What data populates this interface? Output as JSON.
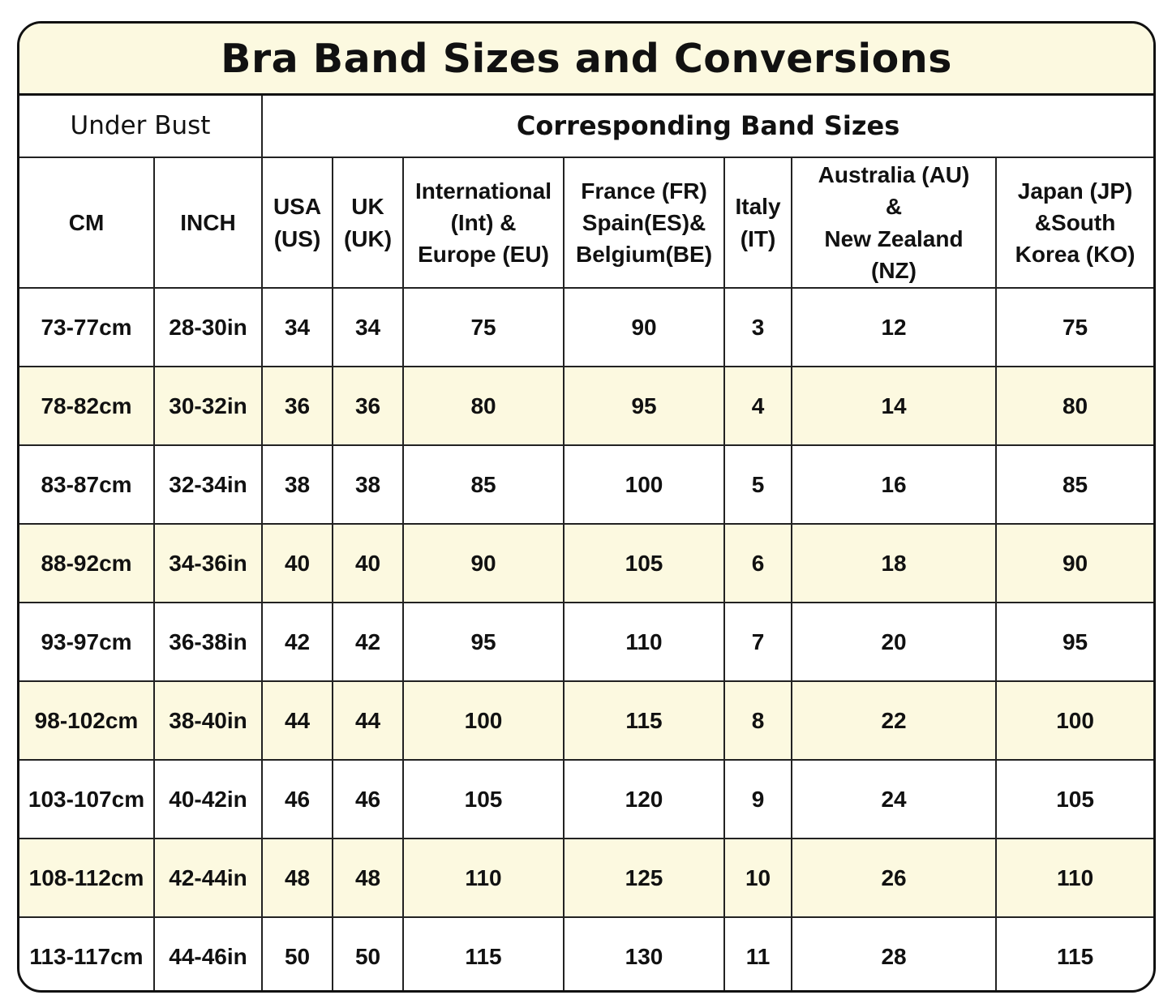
{
  "title": "Bra Band Sizes and Conversions",
  "group_headers": {
    "under_bust": "Under Bust",
    "corresponding": "Corresponding Band Sizes"
  },
  "columns": [
    [
      "CM"
    ],
    [
      "INCH"
    ],
    [
      "USA",
      "(US)"
    ],
    [
      "UK",
      "(UK)"
    ],
    [
      "International",
      "(Int) &",
      "Europe (EU)"
    ],
    [
      "France (FR)",
      "Spain(ES)&",
      "Belgium(BE)"
    ],
    [
      "Italy",
      "(IT)"
    ],
    [
      "Australia (AU)",
      "&",
      "New Zealand",
      "(NZ)"
    ],
    [
      "Japan (JP)",
      "&South",
      "Korea (KO)"
    ]
  ],
  "rows": [
    [
      "73-77cm",
      "28-30in",
      "34",
      "34",
      "75",
      "90",
      "3",
      "12",
      "75"
    ],
    [
      "78-82cm",
      "30-32in",
      "36",
      "36",
      "80",
      "95",
      "4",
      "14",
      "80"
    ],
    [
      "83-87cm",
      "32-34in",
      "38",
      "38",
      "85",
      "100",
      "5",
      "16",
      "85"
    ],
    [
      "88-92cm",
      "34-36in",
      "40",
      "40",
      "90",
      "105",
      "6",
      "18",
      "90"
    ],
    [
      "93-97cm",
      "36-38in",
      "42",
      "42",
      "95",
      "110",
      "7",
      "20",
      "95"
    ],
    [
      "98-102cm",
      "38-40in",
      "44",
      "44",
      "100",
      "115",
      "8",
      "22",
      "100"
    ],
    [
      "103-107cm",
      "40-42in",
      "46",
      "46",
      "105",
      "120",
      "9",
      "24",
      "105"
    ],
    [
      "108-112cm",
      "42-44in",
      "48",
      "48",
      "110",
      "125",
      "10",
      "26",
      "110"
    ],
    [
      "113-117cm",
      "44-46in",
      "50",
      "50",
      "115",
      "130",
      "11",
      "28",
      "115"
    ]
  ],
  "colors": {
    "highlight": "#fcf9e0",
    "border": "#111111"
  }
}
